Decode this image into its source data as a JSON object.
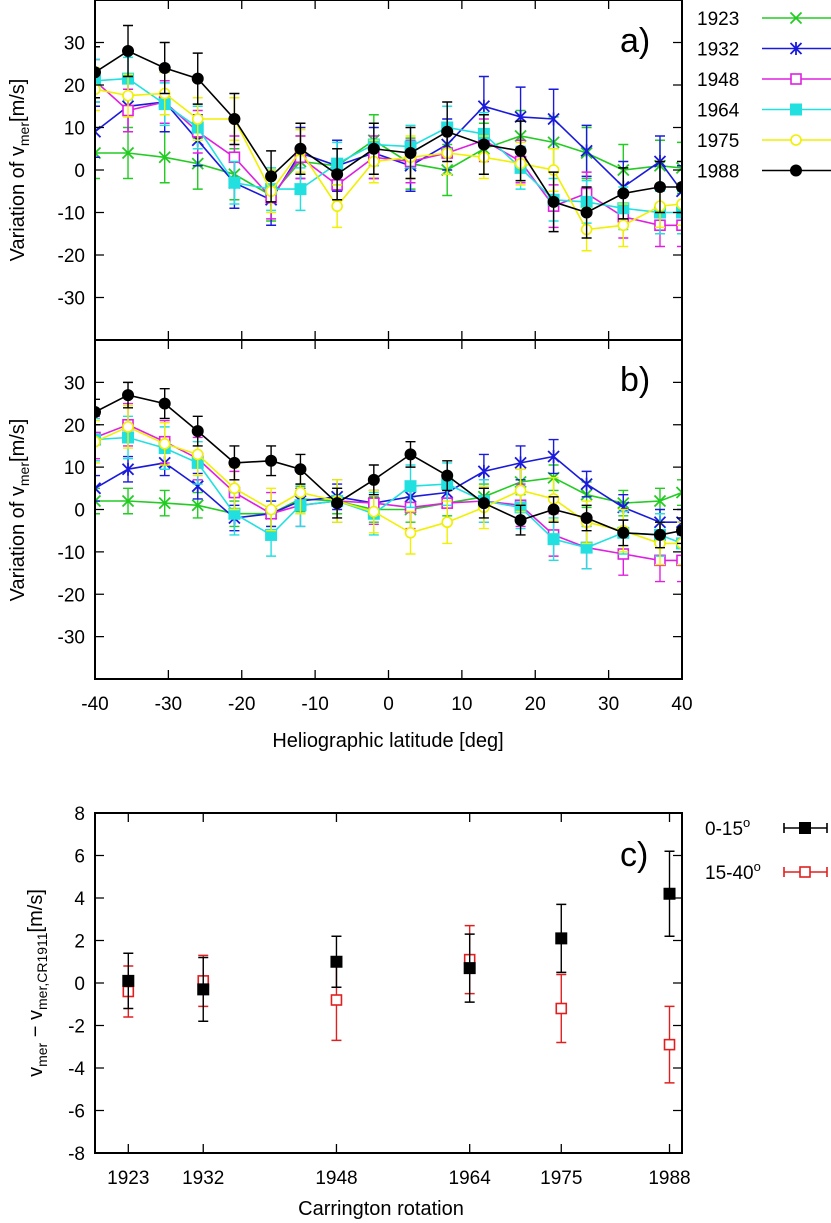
{
  "chart_data": [
    {
      "id": "a",
      "type": "line",
      "panel_label": "a)",
      "ylabel": "Variation of v",
      "ylabel_sub": "mer",
      "ylabel_unit": "[m/s]",
      "xlim": [
        -40,
        40
      ],
      "ylim": [
        -40,
        40
      ],
      "yticks": [
        30,
        20,
        10,
        0,
        -10,
        -20,
        -30
      ],
      "x": [
        -40,
        -35.5,
        -30.5,
        -26,
        -21,
        -16,
        -12,
        -7,
        -2,
        3,
        8,
        13,
        18,
        22.5,
        27,
        32,
        37,
        40
      ],
      "series": [
        {
          "name": "1923",
          "color": "#22cc22",
          "marker": "x",
          "values": [
            4,
            4,
            3,
            1.5,
            -1,
            -6,
            2,
            1,
            7,
            1.5,
            0,
            5,
            8,
            6.5,
            4,
            0,
            1,
            0.5
          ],
          "errors": [
            6,
            6,
            6,
            6,
            6,
            6,
            6,
            6,
            6,
            6,
            6,
            6,
            6,
            6,
            6,
            6,
            6,
            6
          ]
        },
        {
          "name": "1932",
          "color": "#1a1add",
          "marker": "asterisk",
          "values": [
            9,
            15,
            16,
            7,
            -3,
            -7,
            4,
            1,
            4,
            1,
            6,
            15,
            12.5,
            12,
            4.5,
            -4,
            2,
            -5
          ],
          "errors": [
            6,
            6,
            7,
            6,
            6,
            6,
            6,
            6,
            6,
            6,
            6,
            7,
            7,
            7,
            6,
            6,
            6,
            6
          ]
        },
        {
          "name": "1948",
          "color": "#e020e0",
          "marker": "square-open",
          "values": [
            21,
            14,
            16,
            9,
            3,
            -6.5,
            3,
            -3.5,
            3,
            2,
            4,
            7,
            2,
            -8.5,
            -5.5,
            -11,
            -13,
            -13
          ]
        },
        {
          "name": "1964",
          "color": "#22e0e0",
          "marker": "square-filled",
          "values": [
            21,
            21.5,
            15.5,
            10,
            -3,
            -4.5,
            -4.5,
            1.5,
            6,
            5.5,
            10,
            8.5,
            0.5,
            -7,
            -7.5,
            -9,
            -10,
            -10
          ]
        },
        {
          "name": "1975",
          "color": "#f0f000",
          "marker": "circle-open",
          "values": [
            19,
            17.5,
            18,
            12,
            12,
            -5,
            4.5,
            -8.5,
            2,
            3,
            4,
            3,
            1.5,
            0,
            -14,
            -13,
            -8.5,
            -8
          ]
        },
        {
          "name": "1988",
          "color": "#000000",
          "marker": "circle-filled",
          "values": [
            23,
            28,
            24,
            21.5,
            12,
            -1.5,
            5,
            -1,
            5,
            4,
            9,
            6,
            4.5,
            -7.5,
            -10,
            -5.5,
            -4,
            -4
          ],
          "errors": [
            6,
            6,
            6,
            6,
            6,
            6,
            6,
            6,
            6,
            6,
            7,
            7,
            7,
            7,
            6,
            6,
            6,
            6
          ]
        }
      ]
    },
    {
      "id": "b",
      "type": "line",
      "panel_label": "b)",
      "ylabel": "Variation of v",
      "ylabel_sub": "mer",
      "ylabel_unit": "[m/s]",
      "xlabel": "Heliographic latitude [deg]",
      "xlim": [
        -40,
        40
      ],
      "ylim": [
        -40,
        40
      ],
      "yticks": [
        30,
        20,
        10,
        0,
        -10,
        -20,
        -30
      ],
      "xticks": [
        -40,
        -30,
        -20,
        -10,
        0,
        10,
        20,
        30,
        40
      ],
      "x": [
        -40,
        -35.5,
        -30.5,
        -26,
        -21,
        -16,
        -12,
        -7,
        -2,
        3,
        8,
        13,
        18,
        22.5,
        27,
        32,
        37,
        40
      ],
      "series": [
        {
          "name": "1923",
          "color": "#22cc22",
          "marker": "x",
          "values": [
            2,
            2,
            1.5,
            1,
            -1,
            -1,
            2.5,
            2,
            0,
            0,
            1.5,
            3,
            6.5,
            7.5,
            3.5,
            1.5,
            2,
            4
          ],
          "errors": [
            3,
            3,
            3,
            3,
            3,
            3,
            3,
            3,
            3,
            3,
            3,
            3,
            3,
            3,
            3,
            3,
            3,
            3
          ]
        },
        {
          "name": "1932",
          "color": "#1a1add",
          "marker": "asterisk",
          "values": [
            5,
            9.5,
            11,
            5.5,
            -2,
            -1,
            2,
            3,
            1.5,
            3,
            4,
            9,
            11,
            12.5,
            6,
            0.5,
            -3,
            -3
          ],
          "errors": [
            3,
            3,
            3,
            3,
            3,
            3,
            3,
            3,
            3,
            3,
            3,
            4,
            4,
            4,
            3,
            3,
            3,
            3
          ]
        },
        {
          "name": "1948",
          "color": "#e020e0",
          "marker": "square-open",
          "values": [
            17,
            20,
            16,
            12,
            4,
            -1,
            1,
            2,
            1.5,
            0.5,
            1.5,
            2,
            1,
            -6,
            -9,
            -10.5,
            -12,
            -12
          ]
        },
        {
          "name": "1964",
          "color": "#22e0e0",
          "marker": "square-filled",
          "values": [
            16.5,
            17,
            14.5,
            11,
            -1,
            -6,
            1,
            2,
            -1,
            5.5,
            6,
            2,
            0.5,
            -7,
            -9,
            -5.5,
            -6,
            -8
          ]
        },
        {
          "name": "1975",
          "color": "#f0f000",
          "marker": "circle-open",
          "values": [
            16,
            19.5,
            15.5,
            13,
            5,
            0,
            4,
            2,
            -0.5,
            -5.5,
            -3,
            0.5,
            4.5,
            2.5,
            -3,
            -5,
            -8,
            -8
          ]
        },
        {
          "name": "1988",
          "color": "#000000",
          "marker": "circle-filled",
          "values": [
            23,
            27,
            25,
            18.5,
            11,
            11.5,
            9.5,
            1.5,
            7,
            13,
            8,
            1.5,
            -2.5,
            0,
            -2,
            -5.5,
            -6,
            -5
          ],
          "errors": [
            3,
            3,
            3.5,
            3.5,
            4,
            3.5,
            3.5,
            3.5,
            3.5,
            3,
            3.5,
            3.5,
            3.5,
            3,
            3,
            3,
            3,
            3
          ]
        }
      ]
    },
    {
      "id": "c",
      "type": "scatter",
      "panel_label": "c)",
      "ylabel_main": "v",
      "ylabel_sub1": "mer",
      "ylabel_mid": " − v",
      "ylabel_sub2": "mer,CR1911",
      "ylabel_unit": "[m/s]",
      "xlabel": "Carrington rotation",
      "xlim": [
        1919,
        1989.5
      ],
      "ylim": [
        -8,
        8
      ],
      "yticks": [
        8,
        6,
        4,
        2,
        0,
        -2,
        -4,
        -6,
        -8
      ],
      "categories": [
        "1923",
        "1932",
        "1948",
        "1964",
        "1975",
        "1988"
      ],
      "x": [
        1923,
        1932,
        1948,
        1964,
        1975,
        1988
      ],
      "series": [
        {
          "name": "0-15",
          "name_sup": "o",
          "color": "#000000",
          "marker": "square-filled",
          "values": [
            0.1,
            -0.3,
            1.0,
            0.7,
            2.1,
            4.2
          ],
          "errors": [
            1.3,
            1.5,
            1.2,
            1.6,
            1.6,
            2.0
          ]
        },
        {
          "name": "15-40",
          "name_sup": "o",
          "color": "#e02020",
          "marker": "square-open",
          "values": [
            -0.4,
            0.1,
            -0.8,
            1.1,
            -1.2,
            -2.9
          ],
          "errors": [
            1.2,
            1.2,
            1.9,
            1.6,
            1.6,
            1.8
          ]
        }
      ]
    }
  ]
}
